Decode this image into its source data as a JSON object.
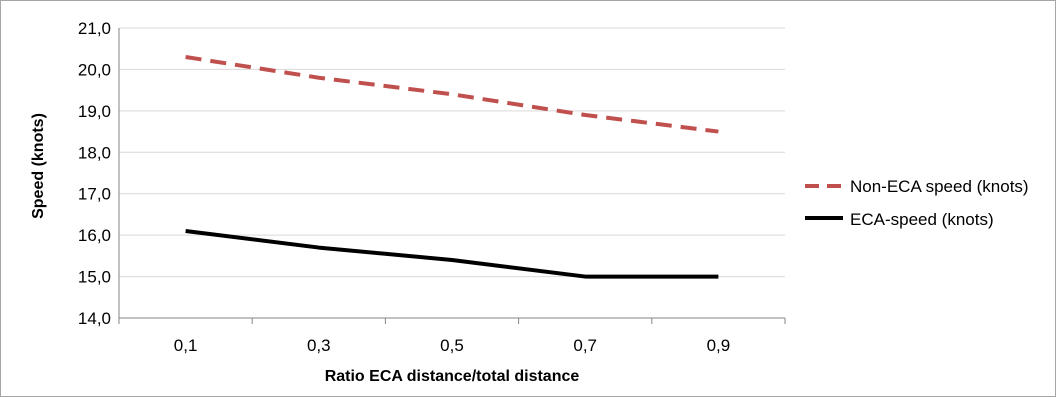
{
  "chart_data": {
    "type": "line",
    "categories": [
      "0,1",
      "0,3",
      "0,5",
      "0,7",
      "0,9"
    ],
    "series": [
      {
        "name": "Non-ECA speed (knots)",
        "values": [
          20.3,
          19.8,
          19.4,
          18.9,
          18.5
        ],
        "color": "#c0504d",
        "style": "dashed"
      },
      {
        "name": "ECA-speed (knots)",
        "values": [
          16.1,
          15.7,
          15.4,
          15.0,
          15.0
        ],
        "color": "#000000",
        "style": "solid"
      }
    ],
    "ylim": [
      14,
      21
    ],
    "yticks": [
      "14,0",
      "15,0",
      "16,0",
      "17,0",
      "18,0",
      "19,0",
      "20,0",
      "21,0"
    ],
    "xlabel": "Ratio ECA distance/total distance",
    "ylabel": "Speed (knots)",
    "grid": "horizontal",
    "legend_position": "right"
  }
}
